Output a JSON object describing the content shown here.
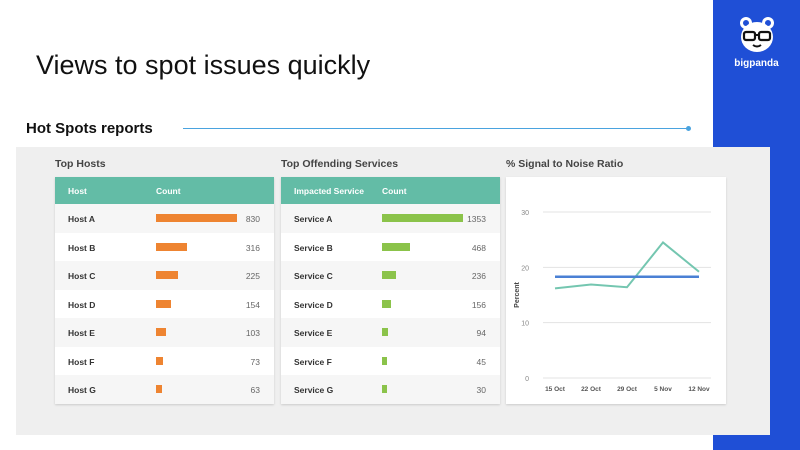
{
  "slide": {
    "title": "Views to spot issues quickly"
  },
  "brand": {
    "name": "bigpanda",
    "logo_icon": "panda-glasses-icon",
    "color": "#1f4fd6"
  },
  "section": {
    "heading": "Hot Spots reports"
  },
  "top_hosts": {
    "title": "Top Hosts",
    "columns": [
      "Host",
      "Count"
    ],
    "bar_color": "#ee8431",
    "rows": [
      {
        "name": "Host A",
        "count": 830
      },
      {
        "name": "Host B",
        "count": 316
      },
      {
        "name": "Host C",
        "count": 225
      },
      {
        "name": "Host D",
        "count": 154
      },
      {
        "name": "Host E",
        "count": 103
      },
      {
        "name": "Host F",
        "count": 73
      },
      {
        "name": "Host G",
        "count": 63
      }
    ]
  },
  "top_services": {
    "title": "Top Offending Services",
    "columns": [
      "Impacted Service",
      "Count"
    ],
    "bar_color": "#8bc34a",
    "rows": [
      {
        "name": "Service A",
        "count": 1353
      },
      {
        "name": "Service B",
        "count": 468
      },
      {
        "name": "Service C",
        "count": 236
      },
      {
        "name": "Service D",
        "count": 156
      },
      {
        "name": "Service E",
        "count": 94
      },
      {
        "name": "Service F",
        "count": 45
      },
      {
        "name": "Service G",
        "count": 30
      }
    ]
  },
  "chart_data": {
    "type": "line",
    "title": "% Signal to Noise Ratio",
    "ylabel": "Percent",
    "xlabel": "",
    "categories": [
      "15 Oct",
      "22 Oct",
      "29 Oct",
      "5 Nov",
      "12 Nov"
    ],
    "ylim": [
      0,
      30
    ],
    "yticks": [
      0,
      10,
      20,
      30
    ],
    "grid": true,
    "series": [
      {
        "color": "#74c6b0",
        "values": [
          16.2,
          16.9,
          16.4,
          24.5,
          19.2
        ]
      },
      {
        "color": "#4a80d4",
        "values": [
          18.3,
          18.3,
          18.3,
          18.3,
          18.3
        ]
      }
    ]
  }
}
